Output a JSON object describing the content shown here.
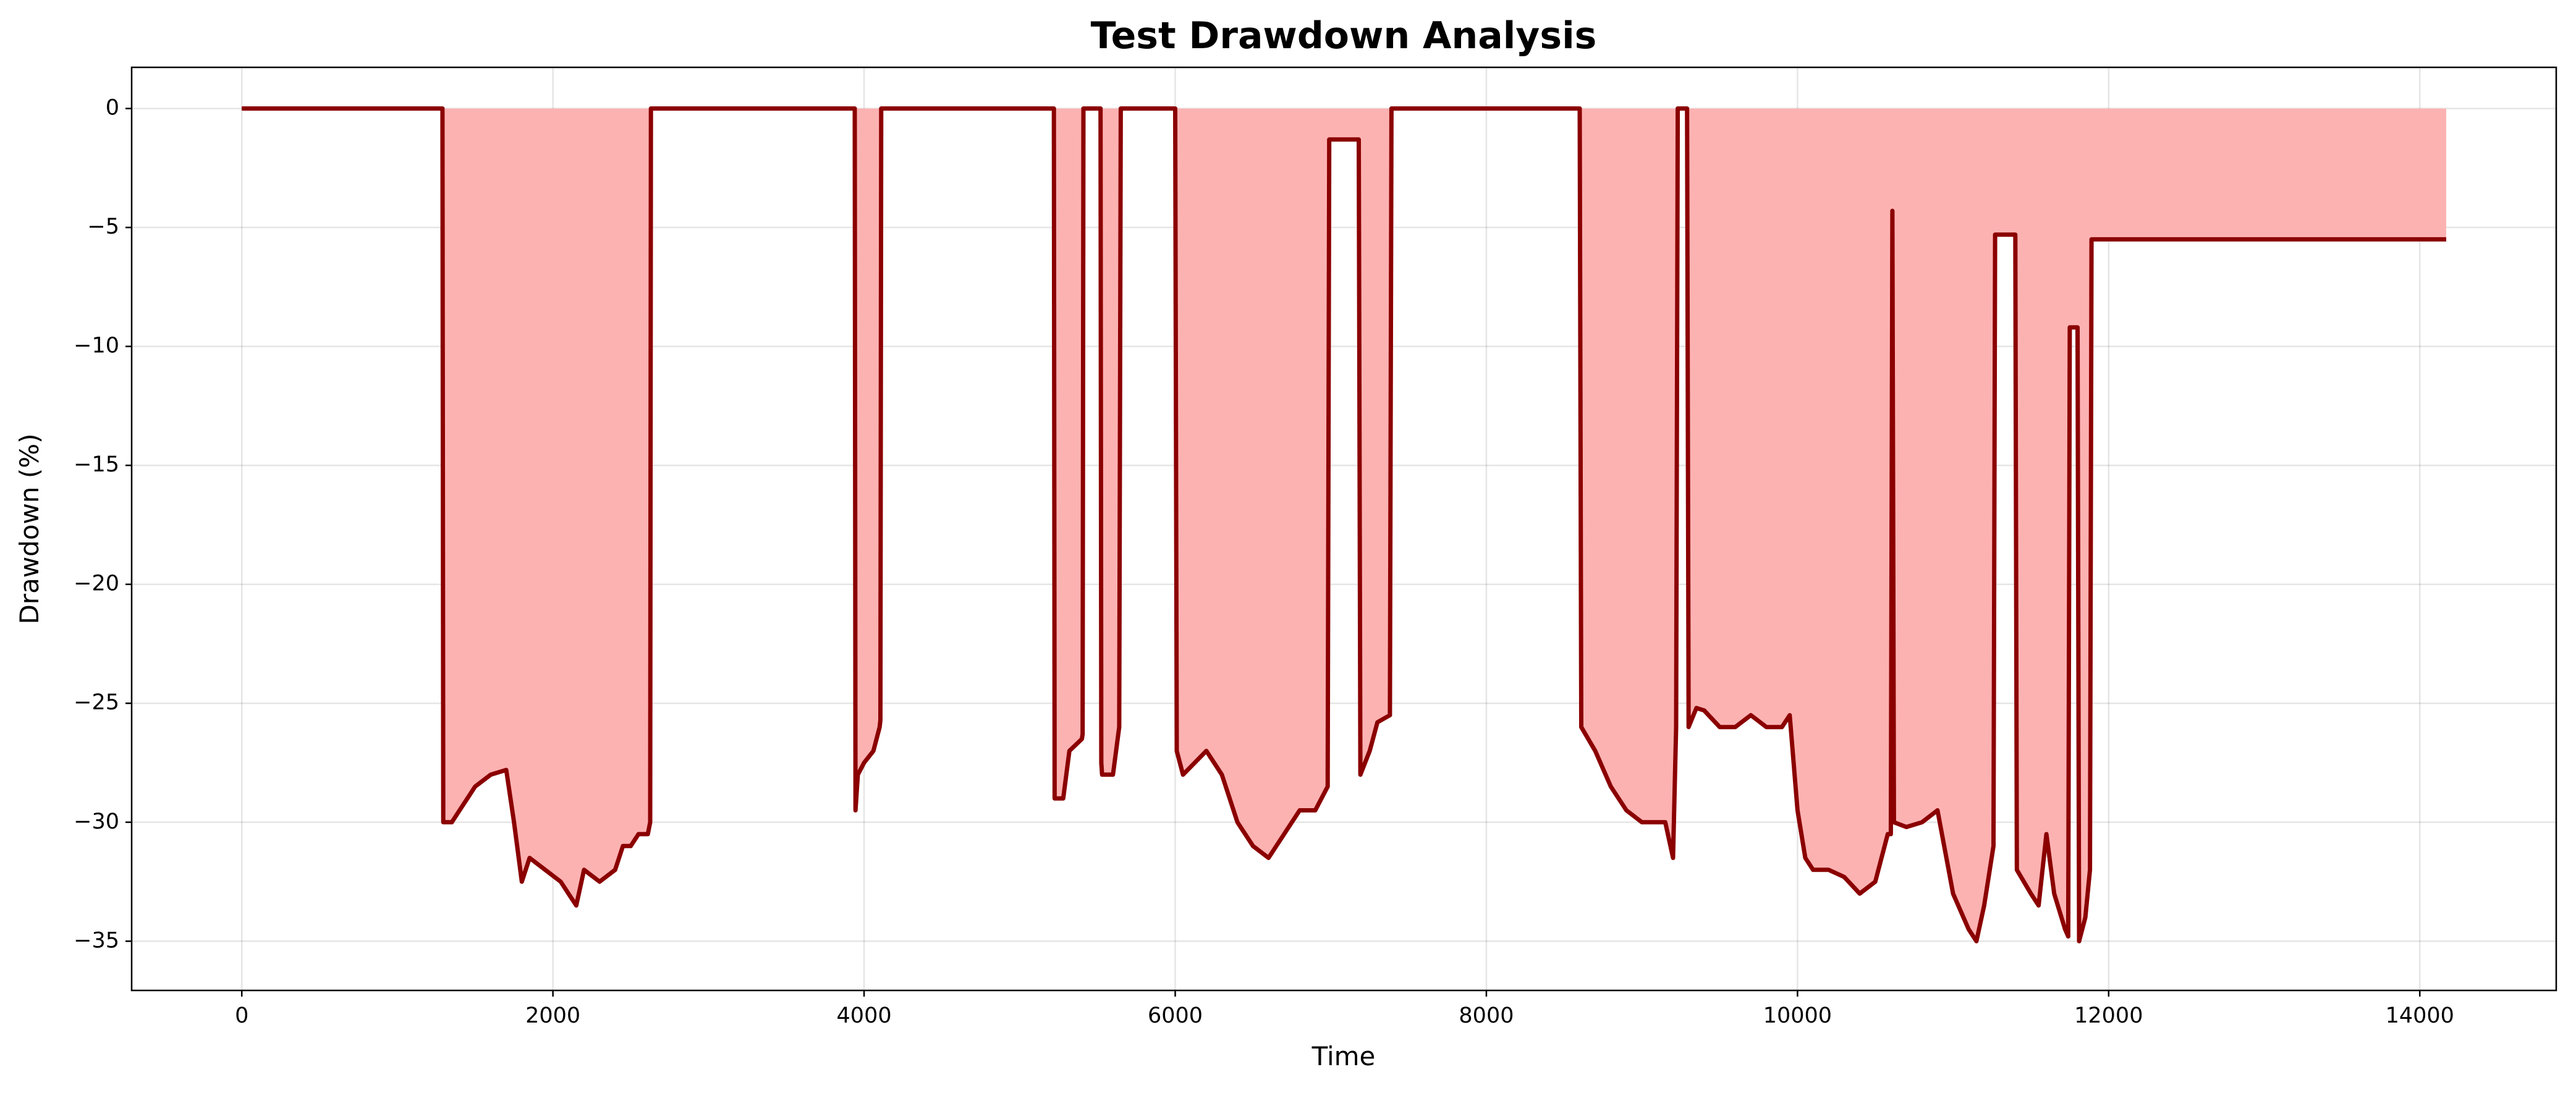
{
  "chart_data": {
    "type": "line",
    "title": "Test Drawdown Analysis",
    "x_label": "Time",
    "y_label": "Drawdown (%)",
    "color": "#8b0000",
    "fill": true,
    "fill_color": "#fdb2b2",
    "grid": true,
    "xlim": [
      -708,
      14877
    ],
    "ylim": [
      -37.07,
      1.73
    ],
    "xticks": [
      0,
      2000,
      4000,
      6000,
      8000,
      10000,
      12000,
      14000
    ],
    "yticks": [
      {
        "value": -35,
        "label": "−35"
      },
      {
        "value": -30,
        "label": "−30"
      },
      {
        "value": -25,
        "label": "−25"
      },
      {
        "value": -20,
        "label": "−20"
      },
      {
        "value": -15,
        "label": "−15"
      },
      {
        "value": -10,
        "label": "−10"
      },
      {
        "value": -5,
        "label": "−5"
      },
      0
    ],
    "x": [
      0,
      1290,
      1295,
      1350,
      1400,
      1500,
      1600,
      1700,
      1750,
      1800,
      1850,
      1950,
      2050,
      2100,
      2150,
      2200,
      2300,
      2400,
      2450,
      2500,
      2550,
      2610,
      2625,
      2630,
      3940,
      3945,
      3960,
      4000,
      4060,
      4100,
      4105,
      4110,
      5220,
      5225,
      5280,
      5320,
      5400,
      5405,
      5410,
      5520,
      5525,
      5530,
      5600,
      5640,
      5650,
      6000,
      6010,
      6050,
      6200,
      6300,
      6400,
      6500,
      6600,
      6700,
      6800,
      6900,
      6980,
      6990,
      7180,
      7190,
      7250,
      7300,
      7380,
      7390,
      8600,
      8610,
      8700,
      8800,
      8900,
      9000,
      9100,
      9150,
      9200,
      9220,
      9230,
      9290,
      9300,
      9350,
      9400,
      9500,
      9600,
      9700,
      9800,
      9900,
      9950,
      10000,
      10050,
      10100,
      10200,
      10300,
      10400,
      10500,
      10580,
      10600,
      10610,
      10620,
      10700,
      10800,
      10900,
      11000,
      11100,
      11150,
      11200,
      11260,
      11270,
      11400,
      11410,
      11500,
      11550,
      11600,
      11650,
      11720,
      11740,
      11750,
      11800,
      11810,
      11850,
      11880,
      11890,
      14170
    ],
    "values": [
      0,
      0,
      -30,
      -30,
      -29.5,
      -28.5,
      -28,
      -27.8,
      -30,
      -32.5,
      -31.5,
      -32,
      -32.5,
      -33,
      -33.5,
      -32,
      -32.5,
      -32,
      -31,
      -31,
      -30.5,
      -30.5,
      -30,
      0,
      0,
      -29.5,
      -28,
      -27.5,
      -27,
      -26,
      -25.7,
      0,
      0,
      -29,
      -29,
      -27,
      -26.5,
      -26.3,
      0,
      0,
      -27.5,
      -28,
      -28,
      -26,
      0,
      0,
      -27,
      -28,
      -27,
      -28,
      -30,
      -31,
      -31.5,
      -30.5,
      -29.5,
      -29.5,
      -28.5,
      -1.3,
      -1.3,
      -28,
      -27,
      -25.8,
      -25.5,
      0,
      0,
      -26,
      -27,
      -28.5,
      -29.5,
      -30,
      -30,
      -30,
      -31.5,
      -26,
      0,
      0,
      -26,
      -25.2,
      -25.3,
      -26,
      -26,
      -25.5,
      -26,
      -26,
      -25.5,
      -29.5,
      -31.5,
      -32,
      -32,
      -32.3,
      -33,
      -32.5,
      -30.5,
      -30.5,
      -4.3,
      -30,
      -30.2,
      -30,
      -29.5,
      -33,
      -34.5,
      -35,
      -33.5,
      -31,
      -5.3,
      -5.3,
      -32,
      -33,
      -33.5,
      -30.5,
      -33,
      -34.5,
      -34.8,
      -9.2,
      -9.2,
      -35,
      -34,
      -32,
      -5.5,
      -5.5
    ]
  }
}
